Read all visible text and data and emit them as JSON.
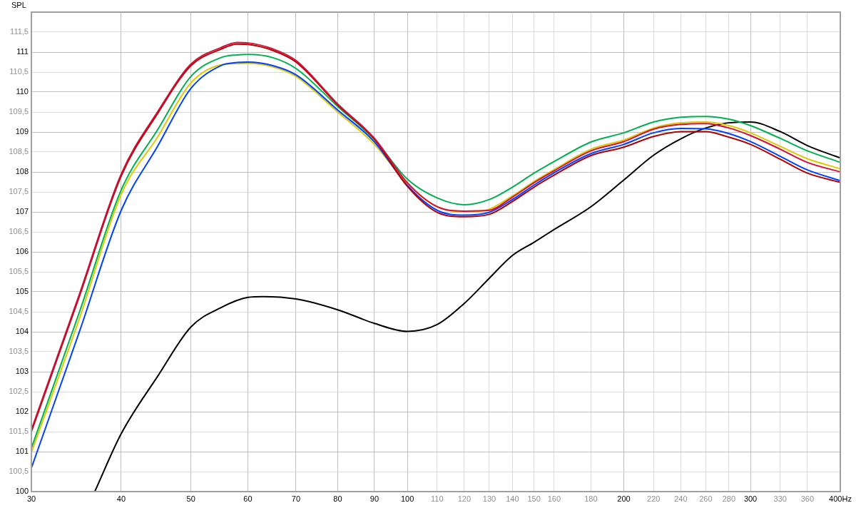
{
  "chart_data": {
    "type": "line",
    "ylabel": "SPL",
    "log": "x",
    "grid": true,
    "legend": false,
    "marker": "none",
    "line_style": "solid",
    "x": [
      30,
      35,
      40,
      45,
      50,
      55,
      58,
      60,
      65,
      70,
      80,
      90,
      100,
      110,
      120,
      130,
      140,
      150,
      160,
      180,
      200,
      220,
      240,
      260,
      280,
      300,
      330,
      360,
      400
    ],
    "xlim": [
      30,
      400
    ],
    "xticks": [
      30,
      40,
      50,
      60,
      70,
      80,
      90,
      100,
      110,
      120,
      130,
      140,
      150,
      160,
      180,
      200,
      220,
      240,
      260,
      280,
      300,
      330,
      360,
      {
        "value": 400,
        "label": "400Hz"
      }
    ],
    "ylim": [
      100,
      112
    ],
    "yticks": [
      100,
      {
        "value": 100.5,
        "label": "100,5"
      },
      101,
      {
        "value": 101.5,
        "label": "101,5"
      },
      102,
      {
        "value": 102.5,
        "label": "102,5"
      },
      103,
      {
        "value": 103.5,
        "label": "103,5"
      },
      104,
      {
        "value": 104.5,
        "label": "104,5"
      },
      105,
      {
        "value": 105.5,
        "label": "105,5"
      },
      106,
      {
        "value": 106.5,
        "label": "106,5"
      },
      107,
      {
        "value": 107.5,
        "label": "107,5"
      },
      108,
      {
        "value": 108.5,
        "label": "108,5"
      },
      109,
      {
        "value": 109.5,
        "label": "109,5"
      },
      110,
      {
        "value": 110.5,
        "label": "110,5"
      },
      111,
      {
        "value": 111.5,
        "label": "111,5"
      }
    ],
    "series": [
      {
        "color": "#000000",
        "x": [
          36.75,
          40,
          45,
          50,
          55,
          60,
          63,
          70,
          80,
          90,
          100,
          110,
          120,
          130,
          140,
          150,
          160,
          180,
          200,
          220,
          240,
          260,
          280,
          300,
          330,
          360,
          400
        ],
        "values": [
          100,
          101.45,
          102.9,
          104.12,
          104.6,
          104.86,
          104.88,
          104.82,
          104.55,
          104.21,
          104.01,
          104.18,
          104.71,
          105.34,
          105.91,
          106.24,
          106.56,
          107.13,
          107.8,
          108.42,
          108.83,
          109.1,
          109.23,
          109.25,
          109.01,
          108.66,
          108.35
        ]
      },
      {
        "color": "#e0c800",
        "values": [
          100.98,
          104.34,
          107.44,
          108.89,
          110.23,
          110.68,
          110.71,
          110.72,
          110.63,
          110.39,
          109.5,
          108.69,
          107.7,
          107.13,
          107.0,
          107.07,
          107.4,
          107.76,
          108.06,
          108.57,
          108.8,
          109.1,
          109.23,
          109.25,
          109.16,
          108.98,
          108.64,
          108.33,
          108.08
        ]
      },
      {
        "color": "#0040ff",
        "values": [
          100.59,
          104.01,
          107.04,
          108.66,
          110.09,
          110.66,
          110.74,
          110.75,
          110.66,
          110.43,
          109.55,
          108.75,
          107.66,
          107.04,
          106.92,
          106.99,
          107.31,
          107.67,
          107.98,
          108.46,
          108.69,
          108.98,
          109.09,
          109.08,
          108.96,
          108.76,
          108.39,
          108.05,
          107.78
        ]
      },
      {
        "color": "#00b050",
        "values": [
          101.09,
          104.5,
          107.55,
          109.07,
          110.39,
          110.86,
          110.93,
          110.94,
          110.86,
          110.59,
          109.64,
          108.81,
          107.82,
          107.35,
          107.18,
          107.31,
          107.62,
          107.97,
          108.26,
          108.75,
          108.98,
          109.25,
          109.37,
          109.39,
          109.32,
          109.16,
          108.84,
          108.53,
          108.24
        ]
      },
      {
        "color": "#b00000",
        "values": [
          101.5,
          104.9,
          107.9,
          109.48,
          110.66,
          111.07,
          111.2,
          111.19,
          111.04,
          110.75,
          109.68,
          108.82,
          107.64,
          106.99,
          106.88,
          106.94,
          107.26,
          107.62,
          107.92,
          108.41,
          108.62,
          108.89,
          109.01,
          109.01,
          108.87,
          108.69,
          108.32,
          107.97,
          107.74
        ]
      },
      {
        "color": "#d0103a",
        "values": [
          101.55,
          104.95,
          107.95,
          109.52,
          110.7,
          111.11,
          111.24,
          111.23,
          111.08,
          110.79,
          109.7,
          108.84,
          107.73,
          107.13,
          107.02,
          107.04,
          107.37,
          107.73,
          108.03,
          108.53,
          108.76,
          109.07,
          109.19,
          109.21,
          109.1,
          108.91,
          108.57,
          108.24,
          108.0
        ]
      }
    ]
  }
}
